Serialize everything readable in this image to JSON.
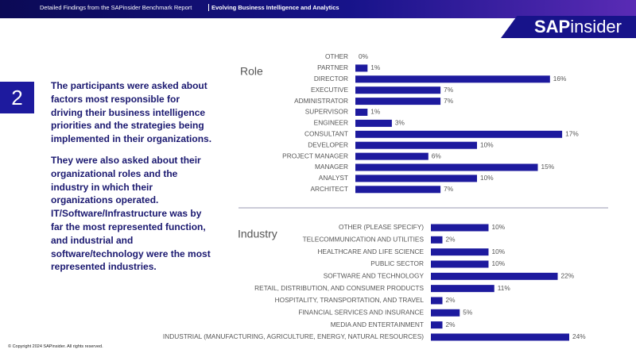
{
  "header": {
    "report": "Detailed Findings from the SAPinsider Benchmark Report",
    "topic": "Evolving Business Intelligence and Analytics"
  },
  "logo": {
    "bold": "SAP",
    "light": "insider"
  },
  "number": "2",
  "paragraphs": [
    "The participants were asked about factors most responsible for driving their business intelligence priorities and the strategies being implemented in their organizations.",
    "They were also asked about their organizational roles and the industry in which their organizations operated. IT/Software/Infrastructure was by far the most represented function, and industrial and software/technology were the most represented industries."
  ],
  "footer": "© Copyright 2024 SAPinsider. All rights reserved.",
  "chart_data": [
    {
      "type": "bar",
      "orientation": "horizontal",
      "title": "Role",
      "color": "#1d1a9e",
      "categories": [
        "OTHER",
        "PARTNER",
        "DIRECTOR",
        "EXECUTIVE",
        "ADMINISTRATOR",
        "SUPERVISOR",
        "ENGINEER",
        "CONSULTANT",
        "DEVELOPER",
        "PROJECT MANAGER",
        "MANAGER",
        "ANALYST",
        "ARCHITECT"
      ],
      "values": [
        0,
        1,
        16,
        7,
        7,
        1,
        3,
        17,
        10,
        6,
        15,
        10,
        7
      ],
      "value_labels": [
        "0%",
        "1%",
        "16%",
        "7%",
        "7%",
        "1%",
        "3%",
        "17%",
        "10%",
        "6%",
        "15%",
        "10%",
        "7%"
      ]
    },
    {
      "type": "bar",
      "orientation": "horizontal",
      "title": "Industry",
      "color": "#1d1a9e",
      "categories": [
        "OTHER (PLEASE SPECIFY)",
        "TELECOMMUNICATION AND UTILITIES",
        "HEALTHCARE AND LIFE SCIENCE",
        "PUBLIC SECTOR",
        "SOFTWARE AND TECHNOLOGY",
        "RETAIL, DISTRIBUTION, AND CONSUMER PRODUCTS",
        "HOSPITALITY, TRANSPORTATION, AND TRAVEL",
        "FINANCIAL SERVICES AND INSURANCE",
        "MEDIA AND ENTERTAINMENT",
        "INDUSTRIAL (MANUFACTURING, AGRICULTURE, ENERGY, NATURAL RESOURCES)"
      ],
      "values": [
        10,
        2,
        10,
        10,
        22,
        11,
        2,
        5,
        2,
        24
      ],
      "value_labels": [
        "10%",
        "2%",
        "10%",
        "10%",
        "22%",
        "11%",
        "2%",
        "5%",
        "2%",
        "24%"
      ]
    }
  ]
}
